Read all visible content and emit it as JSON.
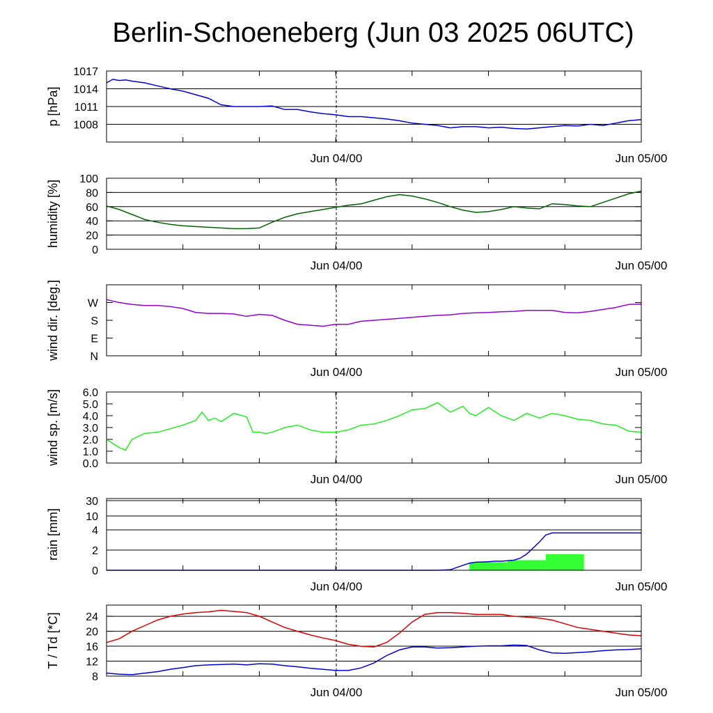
{
  "title": "Berlin-Schoeneberg (Jun 03 2025 06UTC)",
  "colors": {
    "pressure": "#0000dd",
    "humidity": "#006400",
    "wind_dir": "#9400d3",
    "wind_speed": "#22ee22",
    "rain_total": "#0000dd",
    "rain_bars": "#33ff33",
    "temperature": "#dd0000",
    "dewpoint": "#0000dd"
  },
  "chart_data": [
    {
      "type": "line",
      "name": "pressure",
      "ylabel": "p [hPa]",
      "x_range_hours": [
        0,
        42
      ],
      "ylim": [
        1005,
        1017
      ],
      "yticks": [
        1008,
        1011,
        1014,
        1017
      ],
      "ytick_labels": [
        "1008",
        "1011",
        "1014",
        "1017"
      ],
      "xtick_labels": [
        "Jun 04/00",
        "Jun 05/00"
      ],
      "grid": true,
      "series": [
        {
          "color": "#0000dd",
          "x": [
            0,
            0.5,
            1,
            1.5,
            2,
            3,
            4,
            5,
            6,
            7,
            8,
            9,
            10,
            11,
            12,
            13,
            14,
            15,
            16,
            17,
            18,
            19,
            20,
            21,
            22,
            23,
            24,
            25,
            26,
            27,
            28,
            29,
            30,
            31,
            32,
            33,
            34,
            35,
            36,
            37,
            38,
            39,
            40,
            41,
            42
          ],
          "y": [
            1015,
            1015.6,
            1015.4,
            1015.5,
            1015.3,
            1015,
            1014.5,
            1014,
            1013.6,
            1013,
            1012.4,
            1011.3,
            1011,
            1011,
            1011,
            1011.1,
            1010.5,
            1010.5,
            1010.1,
            1009.8,
            1009.6,
            1009.3,
            1009.3,
            1009.1,
            1008.9,
            1008.6,
            1008.2,
            1008,
            1007.8,
            1007.4,
            1007.6,
            1007.6,
            1007.4,
            1007.5,
            1007.3,
            1007.2,
            1007.4,
            1007.6,
            1007.8,
            1007.7,
            1008,
            1007.8,
            1008.2,
            1008.6,
            1008.8
          ]
        }
      ]
    },
    {
      "type": "line",
      "name": "humidity",
      "ylabel": "humidity [%]",
      "x_range_hours": [
        0,
        42
      ],
      "ylim": [
        0,
        100
      ],
      "yticks": [
        0,
        20,
        40,
        60,
        80,
        100
      ],
      "ytick_labels": [
        "0",
        "20",
        "40",
        "60",
        "80",
        "100"
      ],
      "xtick_labels": [
        "Jun 04/00",
        "Jun 05/00"
      ],
      "grid": true,
      "series": [
        {
          "color": "#006400",
          "x": [
            0,
            1,
            2,
            3,
            4,
            5,
            6,
            7,
            8,
            9,
            10,
            11,
            12,
            13,
            14,
            15,
            16,
            17,
            18,
            19,
            20,
            21,
            22,
            23,
            24,
            25,
            26,
            27,
            28,
            29,
            30,
            31,
            32,
            33,
            34,
            35,
            36,
            37,
            38,
            39,
            40,
            41,
            42
          ],
          "y": [
            61,
            56,
            49,
            42,
            38,
            35,
            33,
            32,
            31,
            30,
            29,
            29,
            30,
            38,
            45,
            50,
            53,
            56,
            59,
            62,
            64,
            69,
            74,
            77,
            75,
            71,
            66,
            60,
            55,
            52,
            53,
            56,
            60,
            58,
            57,
            64,
            63,
            61,
            60,
            66,
            72,
            78,
            82
          ]
        }
      ]
    },
    {
      "type": "line",
      "name": "wind_direction",
      "ylabel": "wind dir. [deg.]",
      "x_range_hours": [
        0,
        42
      ],
      "ylim": [
        0,
        360
      ],
      "yticks": [
        0,
        90,
        180,
        270
      ],
      "ytick_labels": [
        "N",
        "E",
        "S",
        "W"
      ],
      "xtick_labels": [
        "Jun 04/00",
        "Jun 05/00"
      ],
      "grid": false,
      "series": [
        {
          "color": "#9400d3",
          "x": [
            0,
            1,
            2,
            3,
            4,
            5,
            6,
            7,
            8,
            9,
            10,
            11,
            12,
            13,
            14,
            15,
            16,
            17,
            18,
            19,
            20,
            21,
            22,
            23,
            24,
            25,
            26,
            27,
            28,
            29,
            30,
            31,
            32,
            33,
            34,
            35,
            36,
            37,
            38,
            39,
            40,
            41,
            42
          ],
          "y": [
            285,
            270,
            260,
            255,
            255,
            250,
            240,
            220,
            215,
            215,
            212,
            200,
            210,
            205,
            180,
            160,
            155,
            150,
            160,
            160,
            175,
            180,
            185,
            190,
            195,
            200,
            205,
            208,
            215,
            218,
            220,
            223,
            225,
            230,
            230,
            230,
            220,
            218,
            225,
            235,
            245,
            260,
            262
          ]
        }
      ]
    },
    {
      "type": "line",
      "name": "wind_speed",
      "ylabel": "wind sp. [m/s]",
      "x_range_hours": [
        0,
        42
      ],
      "ylim": [
        0,
        6
      ],
      "yticks": [
        0,
        1,
        2,
        3,
        4,
        5,
        6
      ],
      "ytick_labels": [
        "0.0",
        "1.0",
        "2.0",
        "3.0",
        "4.0",
        "5.0",
        "6.0"
      ],
      "xtick_labels": [
        "Jun 04/00",
        "Jun 05/00"
      ],
      "grid": false,
      "series": [
        {
          "color": "#22ee22",
          "x": [
            0,
            1,
            1.5,
            2,
            3,
            4,
            5,
            6,
            7,
            7.5,
            8,
            8.5,
            9,
            10,
            11,
            11.5,
            12,
            12.5,
            13,
            14,
            15,
            16,
            17,
            18,
            19,
            20,
            21,
            22,
            23,
            24,
            25,
            26,
            27,
            28,
            28.5,
            29,
            30,
            31,
            32,
            33,
            34,
            35,
            36,
            37,
            38,
            39,
            40,
            41,
            42
          ],
          "y": [
            2,
            1.3,
            1.1,
            2,
            2.5,
            2.6,
            2.9,
            3.2,
            3.6,
            4.3,
            3.6,
            3.8,
            3.5,
            4.2,
            3.9,
            2.6,
            2.6,
            2.5,
            2.6,
            3.0,
            3.2,
            2.8,
            2.6,
            2.6,
            2.8,
            3.2,
            3.3,
            3.6,
            4.0,
            4.5,
            4.6,
            5.1,
            4.3,
            4.8,
            4.2,
            4.0,
            4.7,
            4.0,
            3.6,
            4.2,
            3.8,
            4.2,
            4.0,
            3.7,
            3.6,
            3.3,
            3.2,
            2.7,
            2.6
          ]
        }
      ]
    },
    {
      "type": "bar+line",
      "name": "rain",
      "ylabel": "rain [mm]",
      "x_range_hours": [
        0,
        42
      ],
      "ylim": [
        0,
        30
      ],
      "yticks": [
        0,
        2,
        4,
        10,
        30
      ],
      "ytick_labels": [
        "0",
        "2",
        "4",
        "10",
        "30"
      ],
      "xtick_labels": [
        "Jun 04/00",
        "Jun 05/00"
      ],
      "grid": true,
      "scale": "piecewise",
      "bars": [
        {
          "x_start": 28.5,
          "x_end": 31.5,
          "value": 0.8
        },
        {
          "x_start": 31.5,
          "x_end": 34.5,
          "value": 1.0
        },
        {
          "x_start": 34.5,
          "x_end": 37.5,
          "value": 1.6
        }
      ],
      "series": [
        {
          "color": "#0000dd",
          "x": [
            0,
            26,
            27,
            28,
            28.5,
            29,
            29.5,
            30,
            30.5,
            31,
            31.5,
            32,
            32.5,
            33,
            33.5,
            34,
            34.5,
            35,
            42
          ],
          "y": [
            0,
            0,
            0.05,
            0.5,
            0.7,
            0.8,
            0.82,
            0.85,
            0.9,
            0.9,
            0.95,
            1.0,
            1.2,
            1.6,
            2.2,
            2.8,
            3.5,
            3.7,
            3.7
          ]
        }
      ]
    },
    {
      "type": "line",
      "name": "temperature_dewpoint",
      "ylabel": "T / Td [*C]",
      "x_range_hours": [
        0,
        42
      ],
      "ylim": [
        8,
        27
      ],
      "yticks": [
        8,
        12,
        16,
        20,
        24
      ],
      "ytick_labels": [
        "8",
        "12",
        "16",
        "20",
        "24"
      ],
      "xtick_labels": [
        "Jun 04/00",
        "Jun 05/00"
      ],
      "grid": true,
      "series": [
        {
          "color": "#dd0000",
          "x": [
            0,
            1,
            2,
            3,
            4,
            5,
            6,
            7,
            8,
            9,
            10,
            11,
            12,
            13,
            14,
            15,
            16,
            17,
            18,
            19,
            20,
            21,
            22,
            23,
            24,
            25,
            26,
            27,
            28,
            29,
            30,
            31,
            32,
            33,
            34,
            35,
            36,
            37,
            38,
            39,
            40,
            41,
            42
          ],
          "y": [
            17,
            18,
            20,
            21.5,
            23,
            24,
            24.6,
            25,
            25.2,
            25.6,
            25.3,
            25,
            24,
            22.5,
            21,
            20,
            19,
            18.2,
            17.5,
            16.5,
            16,
            15.8,
            17,
            19.5,
            22.5,
            24.5,
            25,
            25,
            24.8,
            24.5,
            24.5,
            24.5,
            24,
            23.8,
            23.5,
            23,
            22,
            21,
            20.5,
            20,
            19.5,
            19,
            18.8
          ]
        },
        {
          "color": "#0000dd",
          "x": [
            0,
            1,
            2,
            3,
            4,
            5,
            6,
            7,
            8,
            9,
            10,
            11,
            12,
            13,
            14,
            15,
            16,
            17,
            18,
            19,
            20,
            21,
            22,
            23,
            24,
            25,
            26,
            27,
            28,
            29,
            30,
            31,
            32,
            33,
            34,
            35,
            36,
            37,
            38,
            39,
            40,
            41,
            42
          ],
          "y": [
            8.8,
            8.5,
            8.4,
            8.8,
            9.2,
            9.8,
            10.3,
            10.8,
            11,
            11.1,
            11.2,
            11,
            11.3,
            11.2,
            10.8,
            10.5,
            10.1,
            9.8,
            9.5,
            9.5,
            10.2,
            11.5,
            13.5,
            15,
            15.8,
            15.8,
            15.5,
            15.6,
            15.8,
            16,
            16.1,
            16.1,
            16.3,
            16.2,
            15,
            14.2,
            14.1,
            14.3,
            14.5,
            14.8,
            15,
            15.1,
            15.3
          ]
        }
      ]
    }
  ]
}
